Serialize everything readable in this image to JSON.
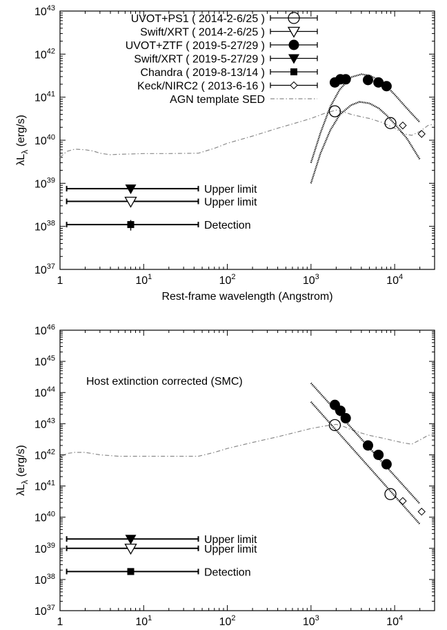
{
  "chart_data": [
    {
      "type": "scatter",
      "annotation": "",
      "xlabel": "Rest-frame wavelength (Angstrom)",
      "ylabel": "λLλ (erg/s)",
      "xscale": "log",
      "yscale": "log",
      "xlim": [
        1,
        30000
      ],
      "ylim": [
        1e+37,
        1e+43
      ],
      "xticks": [
        {
          "v": 1,
          "m": "1",
          "e": "0"
        },
        {
          "v": 10,
          "m": "10",
          "e": "1"
        },
        {
          "v": 100,
          "m": "10",
          "e": "2"
        },
        {
          "v": 1000,
          "m": "10",
          "e": "3"
        },
        {
          "v": 10000,
          "m": "10",
          "e": "4"
        }
      ],
      "yticks": [
        {
          "v": 1e+37,
          "m": "10",
          "e": "37"
        },
        {
          "v": 1e+38,
          "m": "10",
          "e": "38"
        },
        {
          "v": 1e+39,
          "m": "10",
          "e": "39"
        },
        {
          "v": 1e+40,
          "m": "10",
          "e": "40"
        },
        {
          "v": 1e+41,
          "m": "10",
          "e": "41"
        },
        {
          "v": 1e+42,
          "m": "10",
          "e": "42"
        },
        {
          "v": 1e+43,
          "m": "10",
          "e": "43"
        }
      ],
      "legend_position": "top-right",
      "legend": [
        {
          "label": "UVOT+PS1 ( 2014-2-6/25 )",
          "marker": "open-circle"
        },
        {
          "label": "Swift/XRT ( 2014-2-6/25 )",
          "marker": "open-triangle"
        },
        {
          "label": "UVOT+ZTF ( 2019-5-27/29 )",
          "marker": "filled-circle"
        },
        {
          "label": "Swift/XRT ( 2019-5-27/29 )",
          "marker": "filled-triangle"
        },
        {
          "label": "Chandra ( 2019-8-13/14 )",
          "marker": "filled-square"
        },
        {
          "label": "Keck/NIRC2 ( 2013-6-16 )",
          "marker": "open-diamond"
        },
        {
          "label": "AGN template SED",
          "marker": "dashdot-line"
        }
      ],
      "series": [
        {
          "marker": "open-circle",
          "points": [
            [
              1928,
              4.7e+40
            ],
            [
              8900,
              2.5e+40
            ]
          ]
        },
        {
          "marker": "filled-circle",
          "points": [
            [
              1928,
              2.2e+41
            ],
            [
              2246,
              2.6e+41
            ],
            [
              2600,
              2.6e+41
            ],
            [
              4800,
              2.5e+41
            ],
            [
              6400,
              2.2e+41
            ],
            [
              8000,
              1.8e+41
            ]
          ]
        },
        {
          "marker": "open-diamond",
          "points": [
            [
              12500,
              2.2e+40
            ],
            [
              21000,
              1.4e+40
            ]
          ]
        },
        {
          "marker": "filled-triangle",
          "points": [
            [
              7,
              7.5e+38
            ]
          ],
          "xerr": [
            1.2,
            45
          ],
          "text": "Upper limit"
        },
        {
          "marker": "open-triangle",
          "points": [
            [
              7,
              3.8e+38
            ]
          ],
          "xerr": [
            1.2,
            45
          ],
          "text": "Upper limit"
        },
        {
          "marker": "filled-square",
          "points": [
            [
              7,
              1.1e+38
            ]
          ],
          "xerr": [
            1.2,
            45
          ],
          "yerr": [
            8e+37,
            1.4e+38
          ],
          "text": "Detection"
        }
      ],
      "fit_curves": [
        [
          [
            1000,
            3e+39
          ],
          [
            1300,
            1.5e+40
          ],
          [
            1700,
            6e+40
          ],
          [
            2200,
            1.5e+41
          ],
          [
            3000,
            2.9e+41
          ],
          [
            4000,
            3.4e+41
          ],
          [
            5000,
            3.2e+41
          ],
          [
            6500,
            2.5e+41
          ],
          [
            8000,
            1.8e+41
          ],
          [
            10000,
            1.15e+41
          ],
          [
            14000,
            5.5e+40
          ],
          [
            20000,
            2.6e+40
          ]
        ],
        [
          [
            1000,
            1e+39
          ],
          [
            1300,
            5e+39
          ],
          [
            1700,
            1.7e+40
          ],
          [
            2200,
            3.9e+40
          ],
          [
            3000,
            6.5e+40
          ],
          [
            3800,
            7.8e+40
          ],
          [
            5000,
            7.2e+40
          ],
          [
            6500,
            5.5e+40
          ],
          [
            8000,
            3.8e+40
          ],
          [
            10000,
            2.4e+40
          ],
          [
            14000,
            1.1e+40
          ],
          [
            20000,
            3.6e+39
          ]
        ]
      ],
      "agn_template": [
        [
          1,
          4e+39
        ],
        [
          1.2,
          5.5e+39
        ],
        [
          1.5,
          6.2e+39
        ],
        [
          2,
          6e+39
        ],
        [
          2.5,
          5.6e+39
        ],
        [
          3,
          5e+39
        ],
        [
          4,
          4.6e+39
        ],
        [
          5,
          4.7e+39
        ],
        [
          7,
          4.8e+39
        ],
        [
          10,
          4.9e+39
        ],
        [
          20,
          4.9e+39
        ],
        [
          45,
          5e+39
        ],
        [
          70,
          6.5e+39
        ],
        [
          100,
          8.5e+39
        ],
        [
          200,
          1.25e+40
        ],
        [
          400,
          1.9e+40
        ],
        [
          700,
          2.6e+40
        ],
        [
          1000,
          3.2e+40
        ],
        [
          1500,
          4.3e+40
        ],
        [
          2000,
          5e+40
        ],
        [
          2500,
          4.5e+40
        ],
        [
          3000,
          4e+40
        ],
        [
          4000,
          3.5e+40
        ],
        [
          5000,
          3.2e+40
        ],
        [
          7000,
          2.6e+40
        ],
        [
          10000,
          1.9e+40
        ],
        [
          13000,
          1.4e+40
        ],
        [
          16000,
          1.3e+40
        ],
        [
          20000,
          1.6e+40
        ],
        [
          25000,
          2.2e+40
        ],
        [
          30000,
          2.4e+40
        ]
      ]
    },
    {
      "type": "scatter",
      "annotation": "Host extinction corrected (SMC)",
      "xlabel": "Rest-frame wavelength (Angstrom)",
      "ylabel": "λLλ (erg/s)",
      "xscale": "log",
      "yscale": "log",
      "xlim": [
        1,
        30000
      ],
      "ylim": [
        1e+37,
        1e+46
      ],
      "xticks": [
        {
          "v": 1,
          "m": "1",
          "e": "0"
        },
        {
          "v": 10,
          "m": "10",
          "e": "1"
        },
        {
          "v": 100,
          "m": "10",
          "e": "2"
        },
        {
          "v": 1000,
          "m": "10",
          "e": "3"
        },
        {
          "v": 10000,
          "m": "10",
          "e": "4"
        }
      ],
      "yticks": [
        {
          "v": 1e+37,
          "m": "10",
          "e": "37"
        },
        {
          "v": 1e+38,
          "m": "10",
          "e": "38"
        },
        {
          "v": 1e+39,
          "m": "10",
          "e": "39"
        },
        {
          "v": 1e+40,
          "m": "10",
          "e": "40"
        },
        {
          "v": 1e+41,
          "m": "10",
          "e": "41"
        },
        {
          "v": 1e+42,
          "m": "10",
          "e": "42"
        },
        {
          "v": 1e+43,
          "m": "10",
          "e": "43"
        },
        {
          "v": 1e+44,
          "m": "10",
          "e": "44"
        },
        {
          "v": 1e+45,
          "m": "10",
          "e": "45"
        },
        {
          "v": 1e+46,
          "m": "10",
          "e": "46"
        }
      ],
      "legend": [],
      "series": [
        {
          "marker": "open-circle",
          "points": [
            [
              1928,
              9e+42
            ],
            [
              8900,
              5.5e+40
            ]
          ]
        },
        {
          "marker": "filled-circle",
          "points": [
            [
              1928,
              4e+43
            ],
            [
              2246,
              2.6e+43
            ],
            [
              2600,
              1.5e+43
            ],
            [
              4800,
              2e+42
            ],
            [
              6400,
              1e+42
            ],
            [
              8000,
              5e+41
            ]
          ]
        },
        {
          "marker": "open-diamond",
          "points": [
            [
              12500,
              3.3e+40
            ],
            [
              21000,
              1.5e+40
            ]
          ]
        },
        {
          "marker": "filled-triangle",
          "points": [
            [
              7,
              2e+39
            ]
          ],
          "xerr": [
            1.2,
            45
          ],
          "text": "Upper limit"
        },
        {
          "marker": "open-triangle",
          "points": [
            [
              7,
              1e+39
            ]
          ],
          "xerr": [
            1.2,
            45
          ],
          "text": "Upper limit"
        },
        {
          "marker": "filled-square",
          "points": [
            [
              7,
              1.8e+38
            ]
          ],
          "xerr": [
            1.2,
            45
          ],
          "text": "Detection"
        }
      ],
      "fit_curves": [
        [
          [
            1000,
            2e+44
          ],
          [
            20000,
            2.7e+40
          ]
        ],
        [
          [
            1000,
            5e+43
          ],
          [
            20000,
            6e+39
          ]
        ]
      ],
      "agn_template": [
        [
          1,
          8e+41
        ],
        [
          1.2,
          1.1e+42
        ],
        [
          1.5,
          1.2e+42
        ],
        [
          2,
          1.2e+42
        ],
        [
          3,
          1e+42
        ],
        [
          5,
          9e+41
        ],
        [
          10,
          9e+41
        ],
        [
          20,
          9e+41
        ],
        [
          45,
          9e+41
        ],
        [
          70,
          1.2e+42
        ],
        [
          100,
          1.6e+42
        ],
        [
          200,
          2.5e+42
        ],
        [
          400,
          3.8e+42
        ],
        [
          700,
          5.5e+42
        ],
        [
          1000,
          7e+42
        ],
        [
          1500,
          8.5e+42
        ],
        [
          2000,
          9.5e+42
        ],
        [
          2500,
          8e+42
        ],
        [
          3000,
          6.5e+42
        ],
        [
          4000,
          5e+42
        ],
        [
          5000,
          4.2e+42
        ],
        [
          7000,
          3.5e+42
        ],
        [
          10000,
          2.8e+42
        ],
        [
          13000,
          2.4e+42
        ],
        [
          16000,
          2.2e+42
        ],
        [
          20000,
          3e+42
        ],
        [
          25000,
          4.2e+42
        ],
        [
          30000,
          4.5e+42
        ]
      ]
    }
  ]
}
